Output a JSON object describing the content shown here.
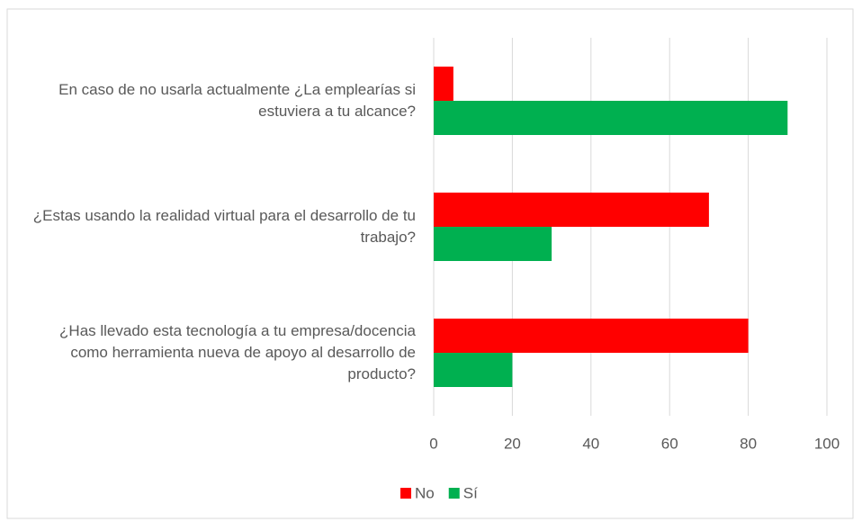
{
  "chart_data": {
    "type": "bar",
    "orientation": "horizontal",
    "categories": [
      "En caso de no usarla actualmente ¿La emplearías si estuviera a tu alcance?",
      "¿Estas usando la realidad virtual para el desarrollo de tu trabajo?",
      "¿Has llevado esta tecnología a tu empresa/docencia como herramienta nueva de apoyo al desarrollo de producto?"
    ],
    "series": [
      {
        "name": "No",
        "color": "#ff0000",
        "values": [
          5,
          70,
          80
        ]
      },
      {
        "name": "Sí",
        "color": "#00b050",
        "values": [
          90,
          30,
          20
        ]
      }
    ],
    "xlim": [
      0,
      100
    ],
    "xticks": [
      0,
      20,
      40,
      60,
      80,
      100
    ],
    "grid": true,
    "legend": "bottom"
  }
}
